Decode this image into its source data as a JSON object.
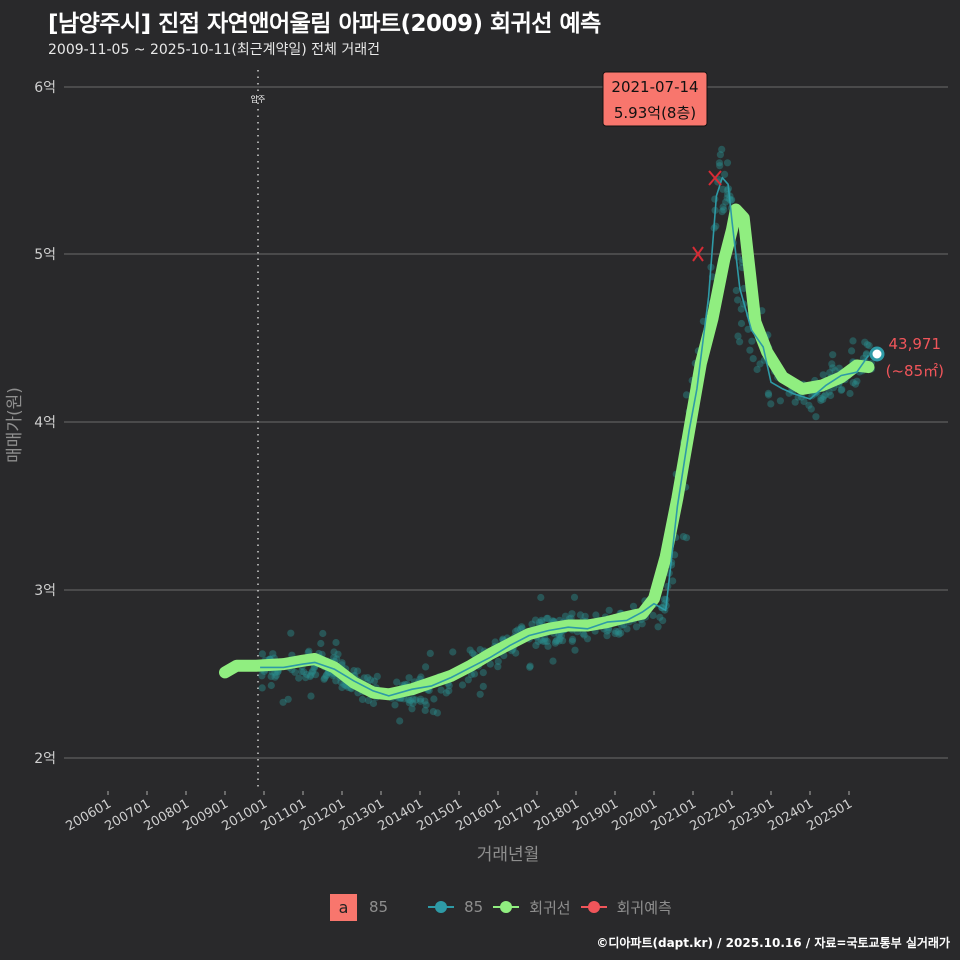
{
  "header": {
    "title": "[남양주시] 진접 자연앤어울림 아파트(2009) 회귀선 예측",
    "subtitle": "2009-11-05 ~ 2025-10-11(최근계약일) 전체 거래건"
  },
  "annotation": {
    "date": "2021-07-14",
    "price": "5.93억(8층)",
    "move_in_label": "입주",
    "last_value": "43,971",
    "last_area": "(~85㎡)"
  },
  "legend": {
    "box_letter": "a",
    "box_label": "85",
    "series_85": "85",
    "series_regression": "회귀선",
    "series_forecast": "회귀예측"
  },
  "footer": "©디아파트(dapt.kr) / 2025.10.16 / 자료=국토교통부 실거래가",
  "colors": {
    "background": "#29292b",
    "grid": "#6b6b6b",
    "scatter": "#2a8c8c",
    "line_85": "#2e9aa6",
    "regression": "#90ee80",
    "forecast": "#f0555a",
    "label_box": "#f8766d"
  },
  "chart_data": {
    "type": "line",
    "title": "[남양주시] 진접 자연앤어울림 아파트(2009) 회귀선 예측",
    "subtitle": "2009-11-05 ~ 2025-10-11(최근계약일) 전체 거래건",
    "xlabel": "거래년월",
    "ylabel": "매매가(원)",
    "x_ticks": [
      "200601",
      "200701",
      "200801",
      "200901",
      "201001",
      "201101",
      "201201",
      "201301",
      "201401",
      "201501",
      "201601",
      "201701",
      "201801",
      "201901",
      "202001",
      "202101",
      "202201",
      "202301",
      "202401",
      "202501"
    ],
    "y_ticks": [
      "2억",
      "3억",
      "4억",
      "5억",
      "6억"
    ],
    "ylim": [
      1.85,
      6.1
    ],
    "grid": true,
    "legend_position": "bottom",
    "vline": {
      "x": "2009-11",
      "label": "입주"
    },
    "series": [
      {
        "name": "회귀선",
        "x": [
          2009.0,
          2009.3,
          2009.8,
          2010.5,
          2011.0,
          2011.3,
          2011.8,
          2012.3,
          2012.8,
          2013.2,
          2013.8,
          2014.3,
          2014.8,
          2015.3,
          2015.8,
          2016.3,
          2016.8,
          2017.3,
          2017.8,
          2018.3,
          2018.8,
          2019.3,
          2019.7,
          2020.0,
          2020.3,
          2020.6,
          2020.9,
          2021.2,
          2021.5,
          2021.8,
          2022.0,
          2022.1,
          2022.3,
          2022.6,
          2022.9,
          2023.3,
          2023.8,
          2024.3,
          2024.8,
          2025.2,
          2025.5
        ],
        "values": [
          2.51,
          2.55,
          2.55,
          2.56,
          2.58,
          2.59,
          2.54,
          2.45,
          2.39,
          2.38,
          2.41,
          2.45,
          2.49,
          2.55,
          2.62,
          2.68,
          2.74,
          2.77,
          2.79,
          2.79,
          2.81,
          2.84,
          2.86,
          2.95,
          3.2,
          3.55,
          3.95,
          4.35,
          4.62,
          4.97,
          5.15,
          5.27,
          5.22,
          4.6,
          4.42,
          4.27,
          4.2,
          4.22,
          4.27,
          4.34,
          4.33
        ]
      },
      {
        "name": "85",
        "x": [
          2009.9,
          2010.5,
          2011.0,
          2011.3,
          2011.8,
          2012.3,
          2012.8,
          2013.2,
          2013.8,
          2014.3,
          2014.8,
          2015.3,
          2015.8,
          2016.3,
          2016.8,
          2017.3,
          2017.8,
          2018.3,
          2018.8,
          2019.3,
          2019.7,
          2020.0,
          2020.3,
          2020.6,
          2020.9,
          2021.1,
          2021.4,
          2021.6,
          2021.75,
          2021.9,
          2022.0,
          2022.2,
          2022.5,
          2022.8,
          2023.0,
          2023.3,
          2023.6,
          2024.0,
          2024.4,
          2024.8,
          2025.2,
          2025.5
        ],
        "values": [
          2.54,
          2.54,
          2.56,
          2.57,
          2.53,
          2.46,
          2.4,
          2.37,
          2.41,
          2.43,
          2.48,
          2.54,
          2.6,
          2.67,
          2.73,
          2.76,
          2.78,
          2.77,
          2.81,
          2.82,
          2.87,
          2.92,
          2.88,
          3.5,
          3.95,
          4.2,
          4.75,
          5.35,
          5.46,
          5.42,
          5.2,
          4.8,
          4.55,
          4.45,
          4.24,
          4.2,
          4.17,
          4.14,
          4.22,
          4.28,
          4.3,
          4.4
        ]
      },
      {
        "name": "회귀예측",
        "points": [
          {
            "x": 2021.1,
            "y": 5.0
          },
          {
            "x": 2021.6,
            "y": 5.45
          }
        ]
      }
    ],
    "highlight": {
      "date": "2021-07-14",
      "price": 5.93,
      "floor": 8
    },
    "last_point": {
      "x": 2025.75,
      "y": 4.3971,
      "label": "43,971"
    }
  }
}
